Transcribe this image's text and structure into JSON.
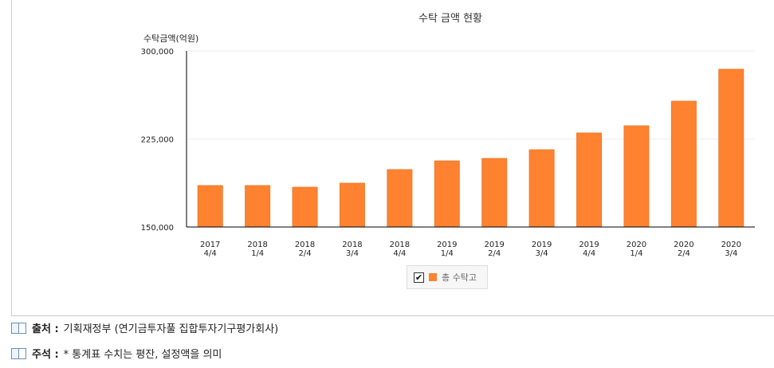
{
  "chart_data": {
    "type": "bar",
    "title": "수탁 금액 현황",
    "ylabel": "수탁금액(억원)",
    "xlabel": "",
    "ylim": [
      150000,
      300000
    ],
    "yticks": [
      "150,000",
      "225,000",
      "300,000"
    ],
    "ytick_values": [
      150000,
      225000,
      300000
    ],
    "grid": true,
    "legend_position": "bottom",
    "categories": [
      [
        "2017",
        "4/4"
      ],
      [
        "2018",
        "1/4"
      ],
      [
        "2018",
        "2/4"
      ],
      [
        "2018",
        "3/4"
      ],
      [
        "2018",
        "4/4"
      ],
      [
        "2019",
        "1/4"
      ],
      [
        "2019",
        "2/4"
      ],
      [
        "2019",
        "3/4"
      ],
      [
        "2019",
        "4/4"
      ],
      [
        "2020",
        "1/4"
      ],
      [
        "2020",
        "2/4"
      ],
      [
        "2020",
        "3/4"
      ]
    ],
    "series": [
      {
        "name": "총 수탁고",
        "color": "#fe822f",
        "values": [
          185300,
          185300,
          183900,
          187300,
          198900,
          206300,
          208400,
          215800,
          230100,
          236200,
          257200,
          284400
        ]
      }
    ]
  },
  "legend": {
    "checked": true,
    "check_mark": "✔"
  },
  "notes": [
    {
      "label": "출처 :",
      "text": "기획재정부 (연기금투자풀 집합투자기구평가회사)",
      "icon": "book-icon"
    },
    {
      "label": "주석 :",
      "text": "* 통계표 수치는 평잔, 설정액을 의미",
      "icon": "book-icon"
    }
  ]
}
